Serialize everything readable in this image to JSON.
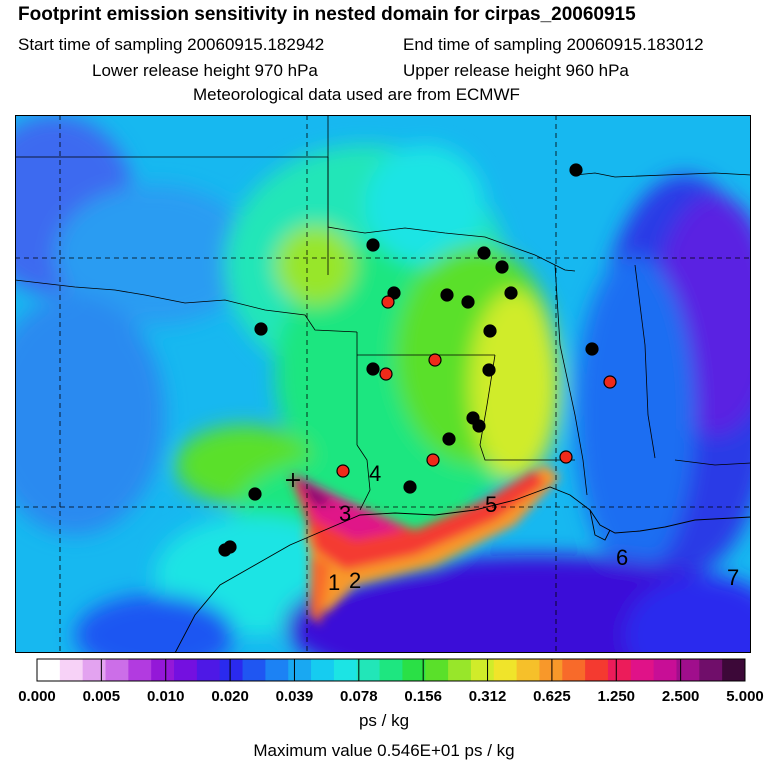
{
  "header": {
    "title": "Footprint emission sensitivity in nested domain for cirpas_20060915",
    "start_label": "Start time of sampling 20060915.182942",
    "end_label": "End time of sampling 20060915.183012",
    "lower_label": "Lower release height  970 hPa",
    "upper_label": "Upper release height  960 hPa",
    "met_label": "Meteorological data used are from ECMWF"
  },
  "map": {
    "region_labels": [
      "1",
      "2",
      "3",
      "4",
      "5",
      "6",
      "7"
    ],
    "colors": {
      "ocean": "#3a10d8",
      "land_base": "#17b8f0",
      "plume_high": "#ff2a6a",
      "plume_peak": "#d4157c",
      "release_marker": "#000000",
      "station_red": "#ef2a1a",
      "station_black": "#000000"
    },
    "release_point_symbol": "+"
  },
  "colorbar": {
    "colors": [
      "#ffffff",
      "#f7d2f7",
      "#e3a3f0",
      "#cc6ee8",
      "#b23be0",
      "#9418d8",
      "#7410e0",
      "#4e18e6",
      "#2a2aee",
      "#1f56f2",
      "#1c82f4",
      "#19a8f2",
      "#16ccf0",
      "#1ce4e4",
      "#22e6b8",
      "#1ee680",
      "#2ae046",
      "#5ae02a",
      "#98e62a",
      "#d0ec2a",
      "#f0e42a",
      "#f6c02a",
      "#f8982a",
      "#f86a2a",
      "#f43a30",
      "#ec1c5a",
      "#e01288",
      "#c80e96",
      "#a00e8c",
      "#700e6a",
      "#3c0838"
    ],
    "tick_labels": [
      "0.000",
      "0.005",
      "0.010",
      "0.020",
      "0.039",
      "0.078",
      "0.156",
      "0.312",
      "0.625",
      "1.250",
      "2.500",
      "5.000"
    ],
    "units": "ps / kg"
  },
  "footer": {
    "max_value": "Maximum value  0.546E+01 ps / kg"
  }
}
